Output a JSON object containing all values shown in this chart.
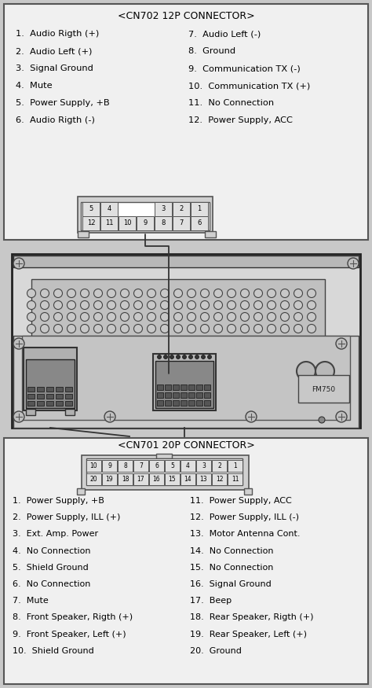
{
  "bg_color": "#c8c8c8",
  "panel_fc": "#f0f0f0",
  "panel_ec": "#555555",
  "cn702_title": "<CN702 12P CONNECTOR>",
  "cn702_left": [
    "1.  Audio Rigth (+)",
    "2.  Audio Left (+)",
    "3.  Signal Ground",
    "4.  Mute",
    "5.  Power Supply, +B",
    "6.  Audio Rigth (-)"
  ],
  "cn702_right": [
    "7.  Audio Left (-)",
    "8.  Ground",
    "9.  Communication TX (-)",
    "10.  Communication TX (+)",
    "11.  No Connection",
    "12.  Power Supply, ACC"
  ],
  "cn702_top_row": [
    "5",
    "4",
    "",
    "",
    "3",
    "2",
    "1"
  ],
  "cn702_bot_row": [
    "12",
    "11",
    "10",
    "9",
    "8",
    "7",
    "6"
  ],
  "cn701_title": "<CN701 20P CONNECTOR>",
  "cn701_top_row": [
    "10",
    "9",
    "8",
    "7",
    "6",
    "5",
    "4",
    "3",
    "2",
    "1"
  ],
  "cn701_bot_row": [
    "20",
    "19",
    "18",
    "17",
    "16",
    "15",
    "14",
    "13",
    "12",
    "11"
  ],
  "cn701_left": [
    "1.  Power Supply, +B",
    "2.  Power Supply, ILL (+)",
    "3.  Ext. Amp. Power",
    "4.  No Connection",
    "5.  Shield Ground",
    "6.  No Connection",
    "7.  Mute",
    "8.  Front Speaker, Rigth (+)",
    "9.  Front Speaker, Left (+)",
    "10.  Shield Ground"
  ],
  "cn701_right": [
    "11.  Power Supply, ACC",
    "12.  Power Supply, ILL (-)",
    "13.  Motor Antenna Cont.",
    "14.  No Connection",
    "15.  No Connection",
    "16.  Signal Ground",
    "17.  Beep",
    "18.  Rear Speaker, Rigth (+)",
    "19.  Rear Speaker, Left (+)",
    "20.  Ground"
  ]
}
